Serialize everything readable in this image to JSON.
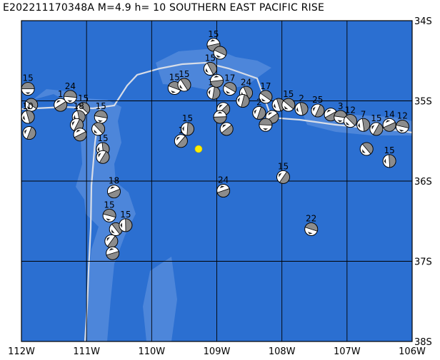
{
  "title": "E202211170348A  M=4.9  h=  10  SOUTHERN EAST PACIFIC RISE",
  "colors": {
    "ocean": "#2b6fd1",
    "shallow": "#4d86da",
    "grid": "#000000",
    "boundary": "#d7dde8",
    "beachball_fill": "#8c8c8c",
    "epicenter": "#ffee00"
  },
  "map": {
    "lon_range": [
      -112,
      -106
    ],
    "lat_range": [
      -38,
      -34
    ],
    "lon_ticks": [
      {
        "value": -112,
        "label": "112W"
      },
      {
        "value": -111,
        "label": "111W"
      },
      {
        "value": -110,
        "label": "110W"
      },
      {
        "value": -109,
        "label": "109W"
      },
      {
        "value": -108,
        "label": "108W"
      },
      {
        "value": -107,
        "label": "107W"
      },
      {
        "value": -106,
        "label": "106W"
      }
    ],
    "lat_ticks": [
      {
        "value": -34,
        "label": "34S"
      },
      {
        "value": -35,
        "label": "35S"
      },
      {
        "value": -36,
        "label": "36S"
      },
      {
        "value": -37,
        "label": "37S"
      },
      {
        "value": -38,
        "label": "38S"
      }
    ],
    "epicenter": {
      "lon": -109.28,
      "lat": -35.6
    }
  },
  "mechanisms": [
    {
      "lon": -111.9,
      "lat": -34.85,
      "depth": "15"
    },
    {
      "lon": -111.85,
      "lat": -35.05,
      "depth": ""
    },
    {
      "lon": -111.9,
      "lat": -35.2,
      "depth": "10"
    },
    {
      "lon": -111.88,
      "lat": -35.4,
      "depth": ""
    },
    {
      "lon": -111.4,
      "lat": -35.05,
      "depth": "1"
    },
    {
      "lon": -111.25,
      "lat": -34.95,
      "depth": "24"
    },
    {
      "lon": -111.05,
      "lat": -35.1,
      "depth": "15"
    },
    {
      "lon": -111.12,
      "lat": -35.2,
      "depth": "18"
    },
    {
      "lon": -111.15,
      "lat": -35.3,
      "depth": ""
    },
    {
      "lon": -111.1,
      "lat": -35.42,
      "depth": ""
    },
    {
      "lon": -110.78,
      "lat": -35.2,
      "depth": "15"
    },
    {
      "lon": -110.82,
      "lat": -35.35,
      "depth": ""
    },
    {
      "lon": -110.75,
      "lat": -35.6,
      "depth": "15"
    },
    {
      "lon": -110.75,
      "lat": -35.7,
      "depth": ""
    },
    {
      "lon": -110.58,
      "lat": -36.13,
      "depth": "18"
    },
    {
      "lon": -110.65,
      "lat": -36.43,
      "depth": "15"
    },
    {
      "lon": -110.55,
      "lat": -36.6,
      "depth": ""
    },
    {
      "lon": -110.4,
      "lat": -36.55,
      "depth": "15"
    },
    {
      "lon": -110.62,
      "lat": -36.75,
      "depth": ""
    },
    {
      "lon": -110.6,
      "lat": -36.9,
      "depth": ""
    },
    {
      "lon": -109.65,
      "lat": -34.84,
      "depth": "15"
    },
    {
      "lon": -109.5,
      "lat": -34.8,
      "depth": "15"
    },
    {
      "lon": -109.45,
      "lat": -35.35,
      "depth": "15"
    },
    {
      "lon": -109.55,
      "lat": -35.5,
      "depth": "1"
    },
    {
      "lon": -109.05,
      "lat": -34.3,
      "depth": "15"
    },
    {
      "lon": -108.95,
      "lat": -34.4,
      "depth": ""
    },
    {
      "lon": -109.1,
      "lat": -34.6,
      "depth": "15"
    },
    {
      "lon": -109.05,
      "lat": -34.9,
      "depth": "15"
    },
    {
      "lon": -108.9,
      "lat": -35.1,
      "depth": ""
    },
    {
      "lon": -109.0,
      "lat": -34.75,
      "depth": ""
    },
    {
      "lon": -108.8,
      "lat": -34.85,
      "depth": "17"
    },
    {
      "lon": -108.55,
      "lat": -34.9,
      "depth": "24"
    },
    {
      "lon": -108.6,
      "lat": -35.0,
      "depth": ""
    },
    {
      "lon": -108.85,
      "lat": -35.35,
      "depth": ""
    },
    {
      "lon": -108.95,
      "lat": -35.2,
      "depth": ""
    },
    {
      "lon": -108.25,
      "lat": -34.95,
      "depth": "17"
    },
    {
      "lon": -108.05,
      "lat": -35.05,
      "depth": ""
    },
    {
      "lon": -108.35,
      "lat": -35.15,
      "depth": "2"
    },
    {
      "lon": -108.15,
      "lat": -35.2,
      "depth": ""
    },
    {
      "lon": -108.25,
      "lat": -35.3,
      "depth": ""
    },
    {
      "lon": -107.9,
      "lat": -35.05,
      "depth": "15"
    },
    {
      "lon": -107.7,
      "lat": -35.1,
      "depth": "2"
    },
    {
      "lon": -107.45,
      "lat": -35.12,
      "depth": "25"
    },
    {
      "lon": -107.25,
      "lat": -35.17,
      "depth": ""
    },
    {
      "lon": -107.1,
      "lat": -35.2,
      "depth": "3"
    },
    {
      "lon": -106.95,
      "lat": -35.25,
      "depth": "12"
    },
    {
      "lon": -106.75,
      "lat": -35.3,
      "depth": "7"
    },
    {
      "lon": -106.55,
      "lat": -35.35,
      "depth": "15"
    },
    {
      "lon": -106.35,
      "lat": -35.3,
      "depth": "14"
    },
    {
      "lon": -106.15,
      "lat": -35.32,
      "depth": "12"
    },
    {
      "lon": -106.7,
      "lat": -35.6,
      "depth": ""
    },
    {
      "lon": -106.35,
      "lat": -35.75,
      "depth": "15"
    },
    {
      "lon": -107.98,
      "lat": -35.95,
      "depth": "15"
    },
    {
      "lon": -108.9,
      "lat": -36.12,
      "depth": "24"
    },
    {
      "lon": -107.55,
      "lat": -36.6,
      "depth": "22"
    }
  ]
}
